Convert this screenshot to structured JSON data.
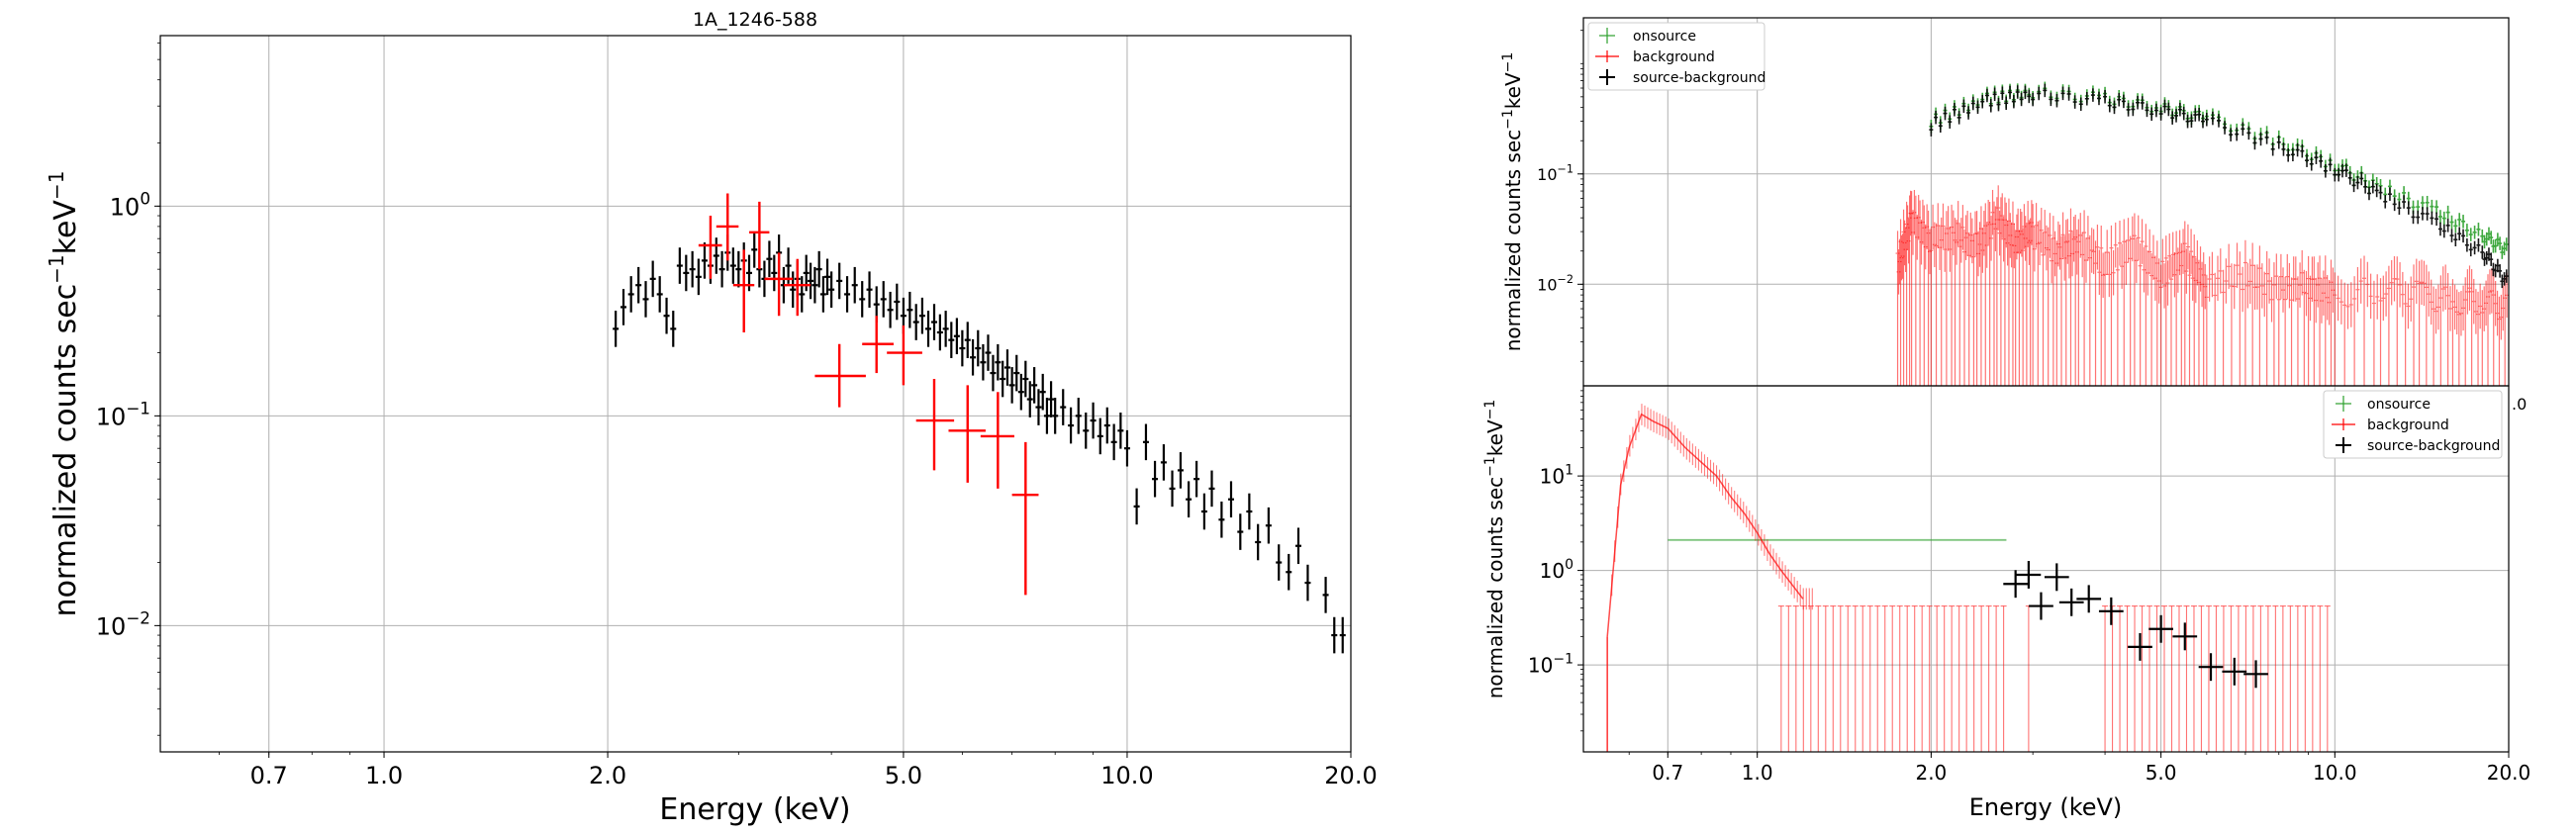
{
  "chart_data": [
    {
      "type": "scatter",
      "title": "1A_1246-588",
      "xlabel": "Energy (keV)",
      "ylabel": "normalized counts sec",
      "ylabel_sup1": "−1",
      "ylabel_mid": "keV",
      "ylabel_sup2": "−1",
      "x_scale": "log",
      "y_scale": "log",
      "xlim": [
        0.5,
        20
      ],
      "ylim": [
        0.0025,
        6.5
      ],
      "grid": true,
      "x_ticks": [
        {
          "value": 0.7,
          "label": "0.7"
        },
        {
          "value": 1.0,
          "label": "1.0"
        },
        {
          "value": 2.0,
          "label": "2.0"
        },
        {
          "value": 5.0,
          "label": "5.0"
        },
        {
          "value": 10.0,
          "label": "10.0"
        },
        {
          "value": 20.0,
          "label": "20.0"
        }
      ],
      "y_ticks": [
        {
          "value": 1,
          "base": "10",
          "exp": "0"
        },
        {
          "value": 0.1,
          "base": "10",
          "exp": "−1"
        },
        {
          "value": 0.01,
          "base": "10",
          "exp": "−2"
        }
      ],
      "series": [
        {
          "color": "#000000",
          "points": [
            [
              2.05,
              0.26
            ],
            [
              2.1,
              0.33
            ],
            [
              2.15,
              0.38
            ],
            [
              2.2,
              0.42
            ],
            [
              2.25,
              0.36
            ],
            [
              2.3,
              0.45
            ],
            [
              2.35,
              0.38
            ],
            [
              2.4,
              0.3
            ],
            [
              2.45,
              0.26
            ],
            [
              2.5,
              0.52
            ],
            [
              2.55,
              0.48
            ],
            [
              2.6,
              0.5
            ],
            [
              2.65,
              0.46
            ],
            [
              2.7,
              0.55
            ],
            [
              2.75,
              0.52
            ],
            [
              2.8,
              0.58
            ],
            [
              2.85,
              0.5
            ],
            [
              2.9,
              0.6
            ],
            [
              2.95,
              0.52
            ],
            [
              3.0,
              0.5
            ],
            [
              3.05,
              0.55
            ],
            [
              3.1,
              0.48
            ],
            [
              3.15,
              0.62
            ],
            [
              3.2,
              0.5
            ],
            [
              3.25,
              0.45
            ],
            [
              3.3,
              0.56
            ],
            [
              3.35,
              0.48
            ],
            [
              3.4,
              0.6
            ],
            [
              3.45,
              0.42
            ],
            [
              3.5,
              0.52
            ],
            [
              3.55,
              0.4
            ],
            [
              3.6,
              0.45
            ],
            [
              3.65,
              0.38
            ],
            [
              3.7,
              0.48
            ],
            [
              3.75,
              0.44
            ],
            [
              3.8,
              0.42
            ],
            [
              3.85,
              0.5
            ],
            [
              3.9,
              0.38
            ],
            [
              3.95,
              0.46
            ],
            [
              4.0,
              0.4
            ],
            [
              4.1,
              0.44
            ],
            [
              4.2,
              0.38
            ],
            [
              4.3,
              0.42
            ],
            [
              4.4,
              0.36
            ],
            [
              4.5,
              0.4
            ],
            [
              4.6,
              0.34
            ],
            [
              4.7,
              0.36
            ],
            [
              4.8,
              0.32
            ],
            [
              4.9,
              0.35
            ],
            [
              5.0,
              0.3
            ],
            [
              5.1,
              0.32
            ],
            [
              5.2,
              0.28
            ],
            [
              5.3,
              0.3
            ],
            [
              5.4,
              0.26
            ],
            [
              5.5,
              0.28
            ],
            [
              5.6,
              0.25
            ],
            [
              5.7,
              0.26
            ],
            [
              5.8,
              0.23
            ],
            [
              5.9,
              0.24
            ],
            [
              6.0,
              0.21
            ],
            [
              6.1,
              0.23
            ],
            [
              6.2,
              0.19
            ],
            [
              6.3,
              0.21
            ],
            [
              6.4,
              0.18
            ],
            [
              6.5,
              0.2
            ],
            [
              6.6,
              0.16
            ],
            [
              6.7,
              0.18
            ],
            [
              6.8,
              0.15
            ],
            [
              6.9,
              0.17
            ],
            [
              7.0,
              0.14
            ],
            [
              7.1,
              0.16
            ],
            [
              7.2,
              0.13
            ],
            [
              7.3,
              0.15
            ],
            [
              7.4,
              0.12
            ],
            [
              7.5,
              0.14
            ],
            [
              7.6,
              0.11
            ],
            [
              7.7,
              0.13
            ],
            [
              7.8,
              0.1
            ],
            [
              7.9,
              0.12
            ],
            [
              8.0,
              0.1
            ],
            [
              8.2,
              0.11
            ],
            [
              8.4,
              0.09
            ],
            [
              8.6,
              0.1
            ],
            [
              8.8,
              0.085
            ],
            [
              9.0,
              0.095
            ],
            [
              9.2,
              0.08
            ],
            [
              9.4,
              0.09
            ],
            [
              9.6,
              0.075
            ],
            [
              9.8,
              0.085
            ],
            [
              10.0,
              0.07
            ],
            [
              10.3,
              0.037
            ],
            [
              10.6,
              0.075
            ],
            [
              10.9,
              0.05
            ],
            [
              11.2,
              0.06
            ],
            [
              11.5,
              0.045
            ],
            [
              11.8,
              0.055
            ],
            [
              12.1,
              0.04
            ],
            [
              12.4,
              0.05
            ],
            [
              12.7,
              0.035
            ],
            [
              13.0,
              0.045
            ],
            [
              13.4,
              0.032
            ],
            [
              13.8,
              0.04
            ],
            [
              14.2,
              0.028
            ],
            [
              14.6,
              0.035
            ],
            [
              15.0,
              0.025
            ],
            [
              15.5,
              0.03
            ],
            [
              16.0,
              0.02
            ],
            [
              16.5,
              0.018
            ],
            [
              17.0,
              0.024
            ],
            [
              17.5,
              0.016
            ],
            [
              18.5,
              0.014
            ],
            [
              19.0,
              0.009
            ],
            [
              19.5,
              0.009
            ]
          ]
        },
        {
          "color": "#ff0000",
          "points": [
            [
              2.75,
              0.65
            ],
            [
              2.9,
              0.8
            ],
            [
              3.05,
              0.42
            ],
            [
              3.2,
              0.75
            ],
            [
              3.4,
              0.45
            ],
            [
              3.6,
              0.42
            ],
            [
              4.1,
              0.155
            ],
            [
              4.6,
              0.22
            ],
            [
              5.0,
              0.2
            ],
            [
              5.5,
              0.095
            ],
            [
              6.1,
              0.085
            ],
            [
              6.7,
              0.08
            ],
            [
              7.3,
              0.042
            ]
          ],
          "errors": [
            [
              [
                2.65,
                2.85
              ],
              [
                0.45,
                0.9
              ]
            ],
            [
              [
                2.8,
                3.0
              ],
              [
                0.55,
                1.15
              ]
            ],
            [
              [
                2.95,
                3.15
              ],
              [
                0.25,
                0.62
              ]
            ],
            [
              [
                3.1,
                3.3
              ],
              [
                0.5,
                1.05
              ]
            ],
            [
              [
                3.25,
                3.55
              ],
              [
                0.3,
                0.6
              ]
            ],
            [
              [
                3.45,
                3.75
              ],
              [
                0.3,
                0.56
              ]
            ],
            [
              [
                3.8,
                4.45
              ],
              [
                0.11,
                0.22
              ]
            ],
            [
              [
                4.4,
                4.85
              ],
              [
                0.16,
                0.3
              ]
            ],
            [
              [
                4.75,
                5.3
              ],
              [
                0.14,
                0.27
              ]
            ],
            [
              [
                5.2,
                5.85
              ],
              [
                0.055,
                0.15
              ]
            ],
            [
              [
                5.75,
                6.45
              ],
              [
                0.048,
                0.14
              ]
            ],
            [
              [
                6.35,
                7.05
              ],
              [
                0.045,
                0.13
              ]
            ],
            [
              [
                7.0,
                7.6
              ],
              [
                0.014,
                0.075
              ]
            ]
          ]
        }
      ]
    },
    {
      "type": "line",
      "xlim": [
        0.5,
        20
      ],
      "ylim": [
        0.0012,
        2.6
      ],
      "x_scale": "log",
      "y_scale": "log",
      "ylabel": "normalized counts sec",
      "ylabel_sup1": "−1",
      "ylabel_mid": "keV",
      "ylabel_sup2": "−1",
      "grid": true,
      "y_ticks": [
        {
          "value": 0.1,
          "base": "10",
          "exp": "−1"
        },
        {
          "value": 0.01,
          "base": "10",
          "exp": "−2"
        }
      ],
      "x_tick_fragment": ".0",
      "legend": {
        "placement": "top-left",
        "entries": [
          {
            "label": "onsource",
            "color": "#2ca02c"
          },
          {
            "label": "background",
            "color": "#ff0000"
          },
          {
            "label": "source-background",
            "color": "#000000"
          }
        ]
      },
      "series": [
        {
          "name": "onsource",
          "color": "#2ca02c",
          "x": [
            2.0,
            2.5,
            3.0,
            4.0,
            5.0,
            6.0,
            8.0,
            10.0,
            12.0,
            15.0,
            18.0,
            20.0
          ],
          "y": [
            0.3,
            0.48,
            0.55,
            0.48,
            0.4,
            0.32,
            0.2,
            0.12,
            0.075,
            0.045,
            0.028,
            0.02
          ]
        },
        {
          "name": "background",
          "color": "#ff0000",
          "x": [
            1.75,
            1.85,
            2.0,
            2.2,
            2.4,
            2.6,
            2.8,
            3.0,
            3.3,
            3.6,
            4.0,
            4.5,
            5.0,
            5.5,
            6.0,
            7.0,
            8.0,
            9.0,
            10.0,
            12.0,
            14.0,
            16.0,
            18.0,
            20.0
          ],
          "y": [
            0.015,
            0.04,
            0.025,
            0.028,
            0.022,
            0.04,
            0.025,
            0.028,
            0.02,
            0.025,
            0.015,
            0.022,
            0.012,
            0.018,
            0.01,
            0.012,
            0.009,
            0.01,
            0.008,
            0.009,
            0.008,
            0.007,
            0.007,
            0.006
          ]
        },
        {
          "name": "source-background",
          "color": "#000000",
          "x": [
            2.0,
            2.5,
            3.0,
            4.0,
            5.0,
            6.0,
            8.0,
            10.0,
            12.0,
            15.0,
            18.0,
            20.0
          ],
          "y": [
            0.28,
            0.46,
            0.53,
            0.45,
            0.38,
            0.3,
            0.18,
            0.11,
            0.065,
            0.035,
            0.02,
            0.01
          ]
        }
      ]
    },
    {
      "type": "line",
      "xlabel": "Energy (keV)",
      "ylabel": "normalized counts sec",
      "ylabel_sup1": "−1",
      "ylabel_mid": "keV",
      "ylabel_sup2": "−1",
      "xlim": [
        0.5,
        20
      ],
      "ylim": [
        0.012,
        90
      ],
      "x_scale": "log",
      "y_scale": "log",
      "grid": true,
      "x_ticks": [
        {
          "value": 0.7,
          "label": "0.7"
        },
        {
          "value": 1.0,
          "label": "1.0"
        },
        {
          "value": 2.0,
          "label": "2.0"
        },
        {
          "value": 5.0,
          "label": "5.0"
        },
        {
          "value": 10.0,
          "label": "10.0"
        },
        {
          "value": 20.0,
          "label": "20.0"
        }
      ],
      "y_ticks": [
        {
          "value": 10,
          "base": "10",
          "exp": "1"
        },
        {
          "value": 1,
          "base": "10",
          "exp": "0"
        },
        {
          "value": 0.1,
          "base": "10",
          "exp": "−1"
        }
      ],
      "legend": {
        "placement": "top-right",
        "entries": [
          {
            "label": "onsource",
            "color": "#2ca02c"
          },
          {
            "label": "background",
            "color": "#ff0000"
          },
          {
            "label": "source-background",
            "color": "#000000"
          }
        ]
      },
      "series": [
        {
          "name": "onsource",
          "color": "#2ca02c",
          "x": [
            0.7,
            2.7
          ],
          "y": [
            2.1,
            2.1
          ]
        },
        {
          "name": "background",
          "color": "#ff0000",
          "x": [
            0.55,
            0.58,
            0.6,
            0.63,
            0.66,
            0.7,
            0.75,
            0.8,
            0.85,
            0.9,
            0.95,
            1.0,
            1.05,
            1.1,
            1.2
          ],
          "y": [
            0.2,
            8.0,
            20.0,
            45.0,
            38.0,
            32.0,
            20.0,
            14.0,
            10.0,
            6.0,
            4.0,
            2.5,
            1.5,
            1.0,
            0.5
          ]
        },
        {
          "name": "source-background",
          "color": "#000000",
          "x": [
            2.8,
            2.95,
            3.1,
            3.3,
            3.5,
            3.75,
            4.1,
            4.6,
            5.0,
            5.5,
            6.1,
            6.7,
            7.3
          ],
          "y": [
            0.72,
            0.9,
            0.42,
            0.85,
            0.46,
            0.5,
            0.37,
            0.155,
            0.24,
            0.2,
            0.095,
            0.085,
            0.08
          ]
        }
      ]
    }
  ]
}
